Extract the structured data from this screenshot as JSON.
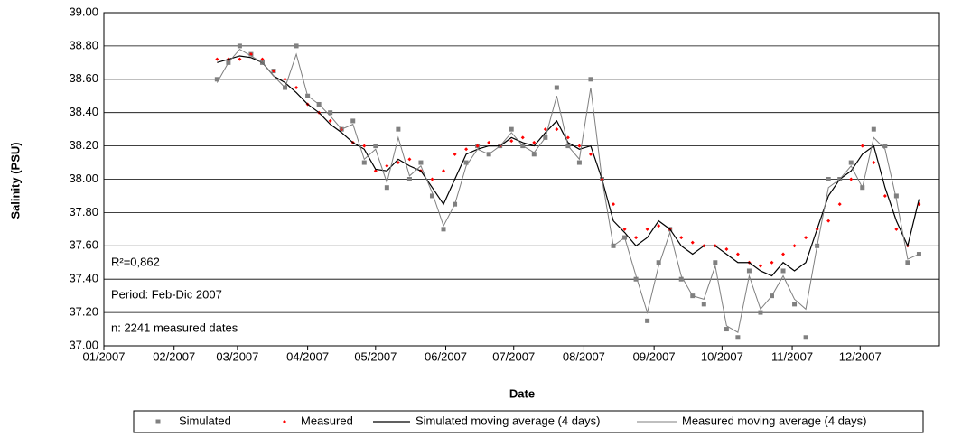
{
  "chart_data": {
    "type": "scatter-line",
    "y_label": "Salinity (PSU)",
    "x_label": "Date",
    "annotations": [
      "R²=0,862",
      "Period: Feb-Dic 2007",
      "n: 2241 measured dates"
    ],
    "x": [
      50,
      55,
      60,
      65,
      70,
      75,
      80,
      85,
      90,
      95,
      100,
      105,
      110,
      115,
      120,
      125,
      130,
      135,
      140,
      145,
      150,
      155,
      160,
      165,
      170,
      175,
      180,
      185,
      190,
      195,
      200,
      205,
      210,
      215,
      220,
      225,
      230,
      235,
      240,
      245,
      250,
      255,
      260,
      265,
      270,
      275,
      280,
      285,
      290,
      295,
      300,
      305,
      310,
      315,
      320,
      325,
      330,
      335,
      340,
      345,
      350,
      355,
      360
    ],
    "xlim": [
      0,
      369
    ],
    "xticks": [
      {
        "value": 0,
        "label": "01/2007"
      },
      {
        "value": 31,
        "label": "02/2007"
      },
      {
        "value": 59,
        "label": "03/2007"
      },
      {
        "value": 90,
        "label": "04/2007"
      },
      {
        "value": 120,
        "label": "05/2007"
      },
      {
        "value": 151,
        "label": "06/2007"
      },
      {
        "value": 181,
        "label": "07/2007"
      },
      {
        "value": 212,
        "label": "08/2007"
      },
      {
        "value": 243,
        "label": "09/2007"
      },
      {
        "value": 273,
        "label": "10/2007"
      },
      {
        "value": 304,
        "label": "11/2007"
      },
      {
        "value": 334,
        "label": "12/2007"
      }
    ],
    "ylim": [
      37,
      39
    ],
    "yticks": [
      {
        "value": 37,
        "label": "37.00"
      },
      {
        "value": 37.2,
        "label": "37.20"
      },
      {
        "value": 37.4,
        "label": "37.40"
      },
      {
        "value": 37.6,
        "label": "37.60"
      },
      {
        "value": 37.8,
        "label": "37.80"
      },
      {
        "value": 38,
        "label": "38.00"
      },
      {
        "value": 38.2,
        "label": "38.20"
      },
      {
        "value": 38.4,
        "label": "38.40"
      },
      {
        "value": 38.6,
        "label": "38.60"
      },
      {
        "value": 38.8,
        "label": "38.80"
      },
      {
        "value": 39,
        "label": "39.00"
      }
    ],
    "grid": true,
    "series": [
      {
        "name": "Simulated",
        "kind": "square",
        "color": "#808080",
        "values": [
          38.6,
          38.7,
          38.8,
          38.75,
          38.7,
          38.65,
          38.55,
          38.8,
          38.5,
          38.45,
          38.4,
          38.3,
          38.35,
          38.1,
          38.2,
          37.95,
          38.3,
          38.0,
          38.1,
          37.9,
          37.7,
          37.85,
          38.1,
          38.2,
          38.15,
          38.2,
          38.3,
          38.2,
          38.15,
          38.25,
          38.55,
          38.2,
          38.1,
          38.6,
          38.0,
          37.6,
          37.65,
          37.4,
          37.15,
          37.5,
          37.7,
          37.4,
          37.3,
          37.25,
          37.5,
          37.1,
          37.05,
          37.45,
          37.2,
          37.3,
          37.45,
          37.25,
          37.05,
          37.6,
          38.0,
          38.0,
          38.1,
          37.95,
          38.3,
          38.2,
          37.9,
          37.5,
          37.55
        ]
      },
      {
        "name": "Measured",
        "kind": "diamond",
        "color": "#ff0000",
        "values": [
          38.72,
          38.72,
          38.72,
          38.75,
          38.72,
          38.65,
          38.6,
          38.55,
          38.45,
          38.4,
          38.35,
          38.3,
          38.22,
          38.2,
          38.05,
          38.08,
          38.1,
          38.12,
          38.05,
          38.0,
          38.05,
          38.15,
          38.18,
          38.2,
          38.22,
          38.2,
          38.23,
          38.25,
          38.22,
          38.3,
          38.3,
          38.25,
          38.2,
          38.15,
          38.0,
          37.85,
          37.7,
          37.65,
          37.7,
          37.72,
          37.7,
          37.65,
          37.62,
          37.6,
          37.6,
          37.58,
          37.55,
          37.5,
          37.48,
          37.5,
          37.55,
          37.6,
          37.65,
          37.7,
          37.75,
          37.85,
          38.0,
          38.2,
          38.1,
          37.9,
          37.7,
          37.6,
          37.85
        ]
      },
      {
        "name": "Simulated moving average (4 days)",
        "kind": "line",
        "color": "#000000",
        "width": 1.2,
        "values": [
          38.7,
          38.72,
          38.74,
          38.73,
          38.7,
          38.62,
          38.58,
          38.52,
          38.45,
          38.4,
          38.33,
          38.28,
          38.22,
          38.18,
          38.06,
          38.05,
          38.12,
          38.08,
          38.05,
          37.95,
          37.85,
          38.0,
          38.15,
          38.18,
          38.2,
          38.2,
          38.25,
          38.22,
          38.2,
          38.28,
          38.35,
          38.22,
          38.18,
          38.2,
          38.0,
          37.75,
          37.68,
          37.6,
          37.65,
          37.75,
          37.7,
          37.6,
          37.55,
          37.6,
          37.6,
          37.55,
          37.5,
          37.5,
          37.45,
          37.42,
          37.5,
          37.45,
          37.5,
          37.7,
          37.9,
          38.0,
          38.05,
          38.15,
          38.2,
          37.95,
          37.75,
          37.6,
          37.88
        ]
      },
      {
        "name": "Measured moving average (4 days)",
        "kind": "line",
        "color": "#7f7f7f",
        "width": 1,
        "values": [
          38.58,
          38.7,
          38.78,
          38.74,
          38.7,
          38.62,
          38.55,
          38.75,
          38.5,
          38.45,
          38.38,
          38.3,
          38.33,
          38.12,
          38.18,
          37.98,
          38.25,
          38.02,
          38.08,
          37.92,
          37.72,
          37.85,
          38.08,
          38.18,
          38.15,
          38.2,
          38.28,
          38.2,
          38.16,
          38.25,
          38.5,
          38.2,
          38.12,
          38.55,
          38.0,
          37.6,
          37.65,
          37.42,
          37.2,
          37.48,
          37.68,
          37.42,
          37.3,
          37.28,
          37.48,
          37.12,
          37.08,
          37.42,
          37.22,
          37.3,
          37.42,
          37.28,
          37.22,
          37.6,
          37.95,
          38.0,
          38.08,
          37.95,
          38.25,
          38.18,
          37.88,
          37.52,
          37.55
        ]
      }
    ]
  }
}
